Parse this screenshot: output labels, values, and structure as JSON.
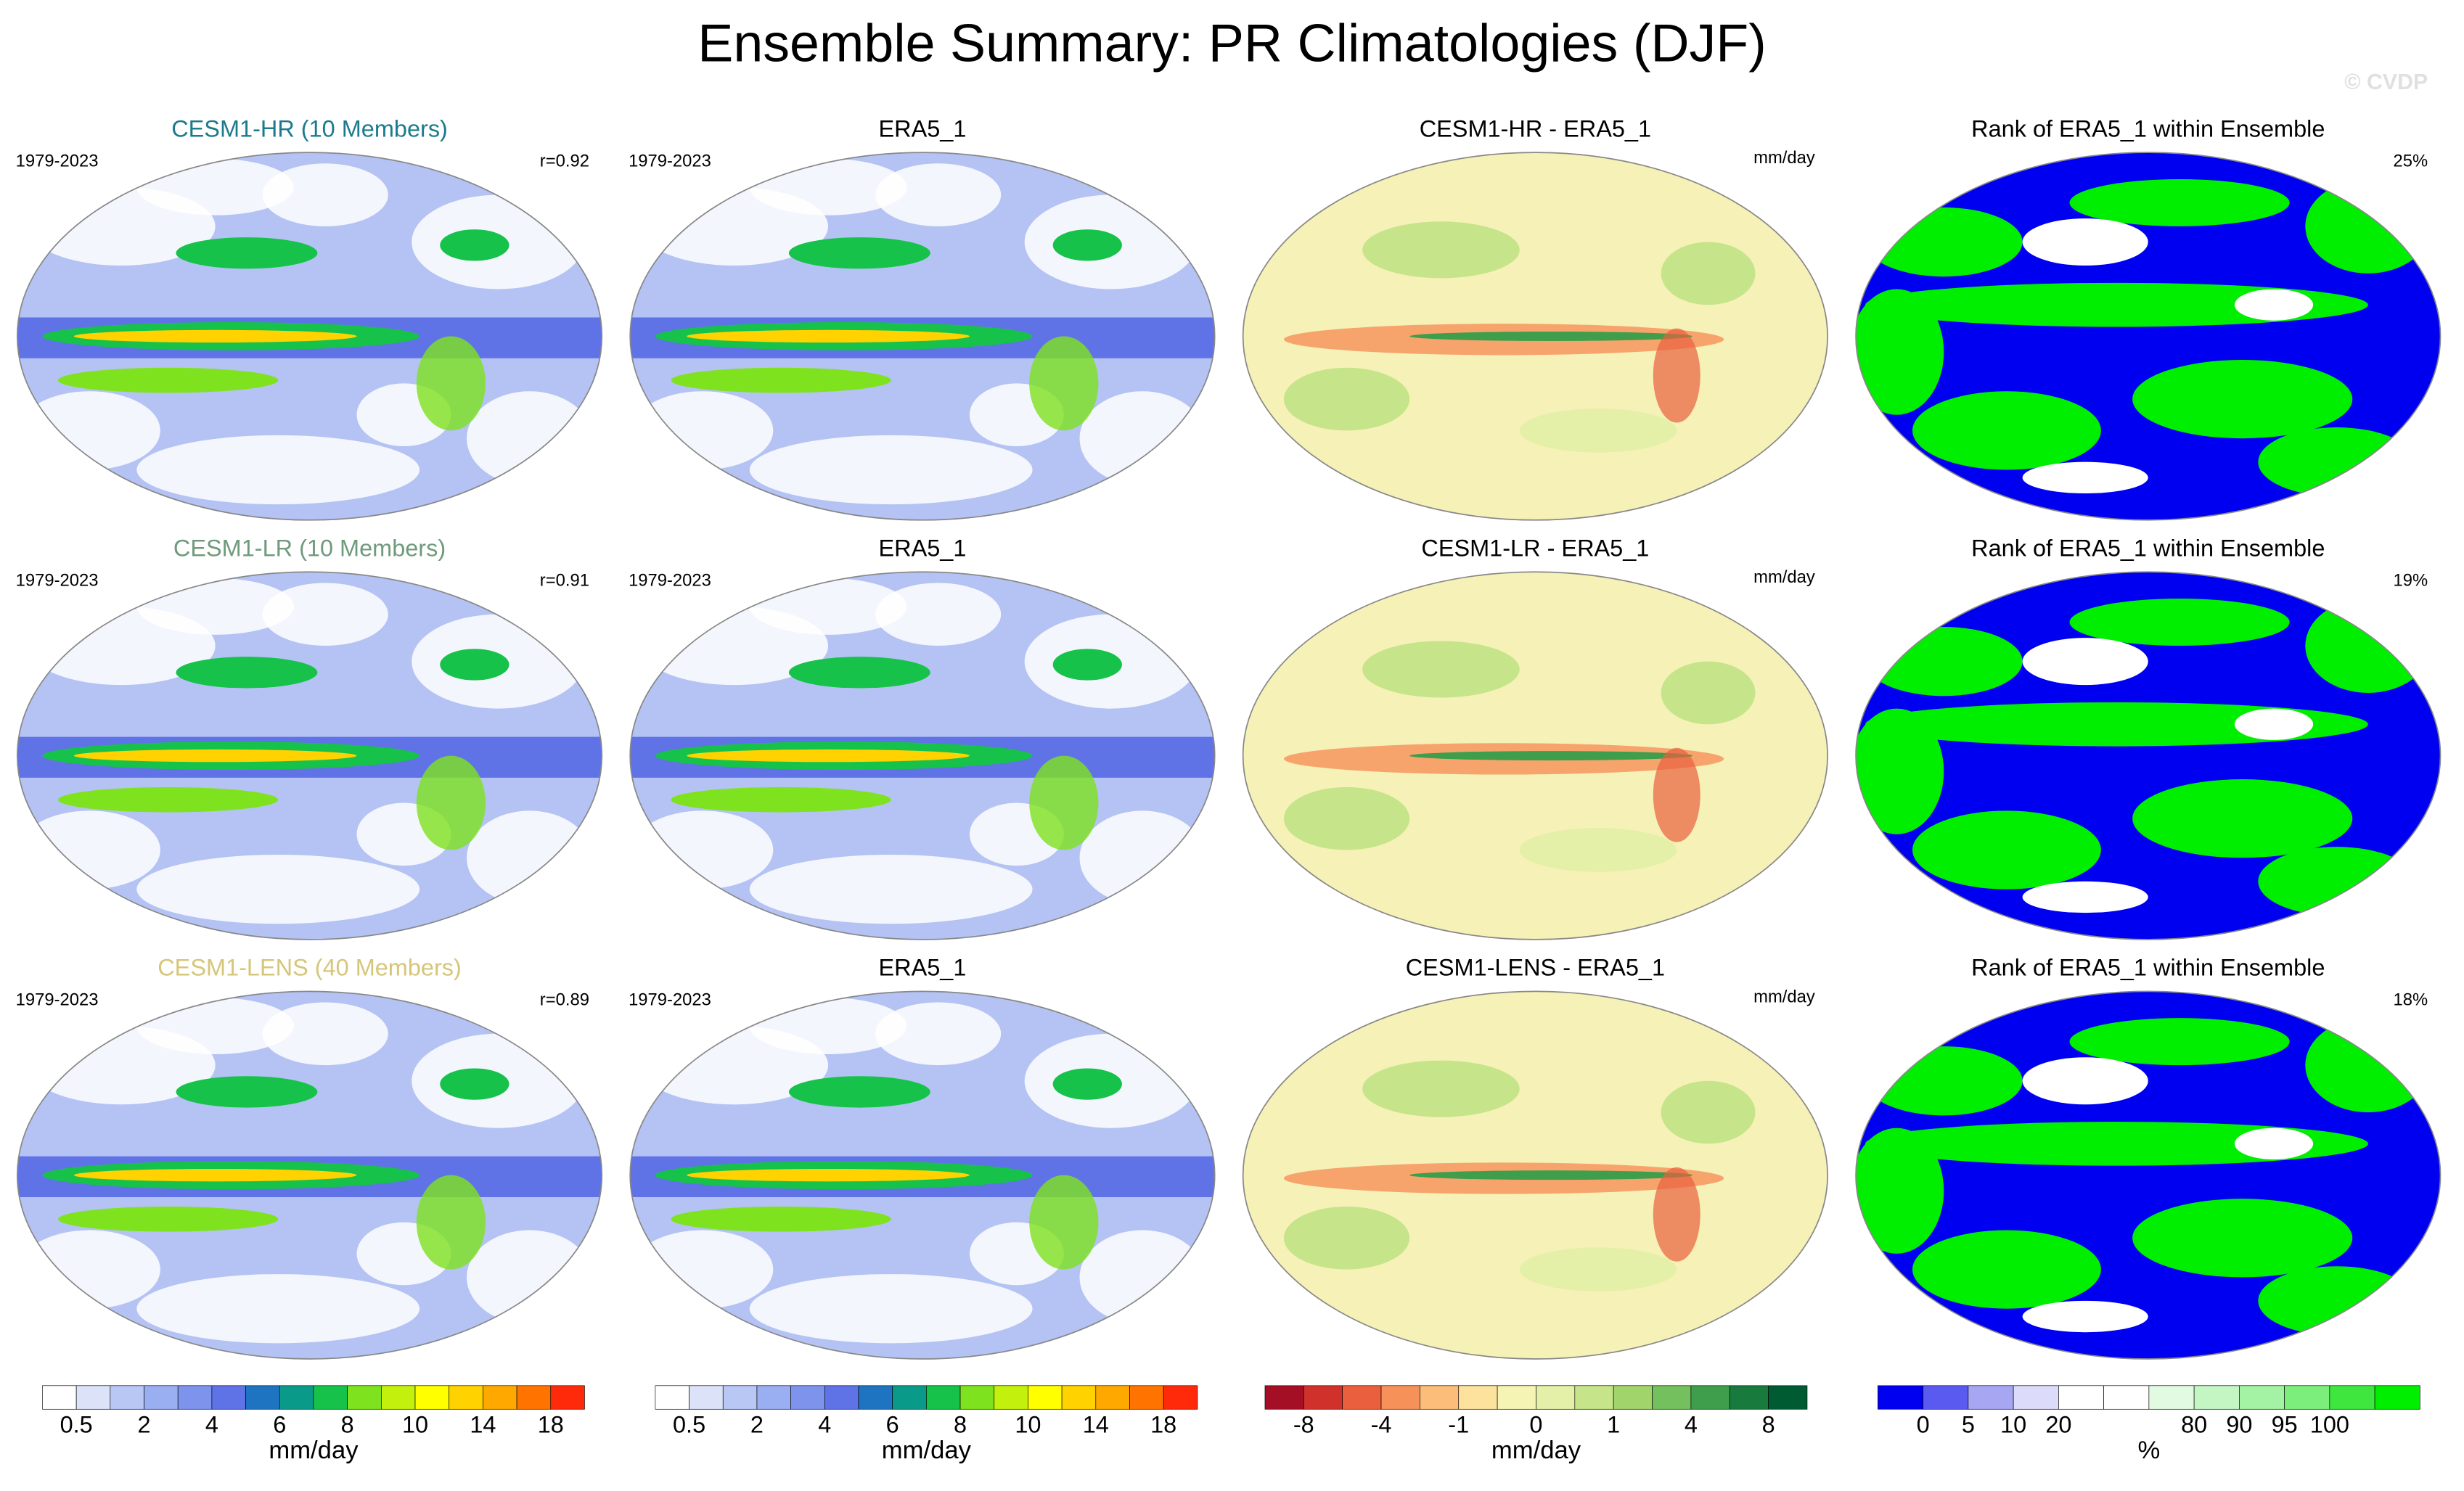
{
  "title": "Ensemble Summary: PR Climatologies (DJF)",
  "watermark": "© CVDP",
  "rows": [
    {
      "panels": [
        {
          "title": "CESM1-HR (10 Members)",
          "title_color": "#1b7b8c",
          "left": "1979-2023",
          "right": "r=0.92"
        },
        {
          "title": "ERA5_1",
          "left": "1979-2023"
        },
        {
          "title": "CESM1-HR - ERA5_1",
          "right": "mm/day"
        },
        {
          "title": "Rank of ERA5_1 within Ensemble",
          "right": "25%"
        }
      ]
    },
    {
      "panels": [
        {
          "title": "CESM1-LR (10 Members)",
          "title_color": "#6f9a7c",
          "left": "1979-2023",
          "right": "r=0.91"
        },
        {
          "title": "ERA5_1",
          "left": "1979-2023"
        },
        {
          "title": "CESM1-LR - ERA5_1",
          "right": "mm/day"
        },
        {
          "title": "Rank of ERA5_1 within Ensemble",
          "right": "19%"
        }
      ]
    },
    {
      "panels": [
        {
          "title": "CESM1-LENS (40 Members)",
          "title_color": "#d6c67a",
          "left": "1979-2023",
          "right": "r=0.89"
        },
        {
          "title": "ERA5_1",
          "left": "1979-2023"
        },
        {
          "title": "CESM1-LENS - ERA5_1",
          "right": "mm/day"
        },
        {
          "title": "Rank of ERA5_1 within Ensemble",
          "right": "18%"
        }
      ]
    }
  ],
  "colorbars": [
    {
      "colors": [
        "#ffffff",
        "#dce3f9",
        "#b9c7f5",
        "#9aaef2",
        "#7d93ec",
        "#5f73e6",
        "#1f74c2",
        "#0a9a8a",
        "#16c24a",
        "#7ee21e",
        "#c4f00e",
        "#ffff00",
        "#ffd200",
        "#ffa800",
        "#ff7400",
        "#ff2a0a"
      ],
      "labels": [
        "0.5",
        "2",
        "4",
        "6",
        "8",
        "10",
        "14",
        "18"
      ],
      "unit": "mm/day"
    },
    {
      "colors": [
        "#ffffff",
        "#dce3f9",
        "#b9c7f5",
        "#9aaef2",
        "#7d93ec",
        "#5f73e6",
        "#1f74c2",
        "#0a9a8a",
        "#16c24a",
        "#7ee21e",
        "#c4f00e",
        "#ffff00",
        "#ffd200",
        "#ffa800",
        "#ff7400",
        "#ff2a0a"
      ],
      "labels": [
        "0.5",
        "2",
        "4",
        "6",
        "8",
        "10",
        "14",
        "18"
      ],
      "unit": "mm/day"
    },
    {
      "colors": [
        "#a50f26",
        "#d0322b",
        "#ea603e",
        "#f6915a",
        "#fbbd79",
        "#fde29e",
        "#f6f4b4",
        "#e4f0a8",
        "#c6e489",
        "#a2d46c",
        "#74bf5e",
        "#3e9e4b",
        "#187a3d",
        "#005a32"
      ],
      "labels": [
        "-8",
        "-4",
        "-1",
        "0",
        "1",
        "4",
        "8"
      ],
      "unit": "mm/day"
    },
    {
      "colors": [
        "#0000f0",
        "#5a5af0",
        "#a6a6f2",
        "#dcdcfa",
        "#ffffff",
        "#ffffff",
        "#e2fae2",
        "#c4f6c4",
        "#a4f2a4",
        "#7cee7c",
        "#3ee63e",
        "#00ee00"
      ],
      "labels": [
        "0",
        "5",
        "10",
        "20",
        "80",
        "90",
        "95",
        "100"
      ],
      "unit": "%"
    }
  ]
}
